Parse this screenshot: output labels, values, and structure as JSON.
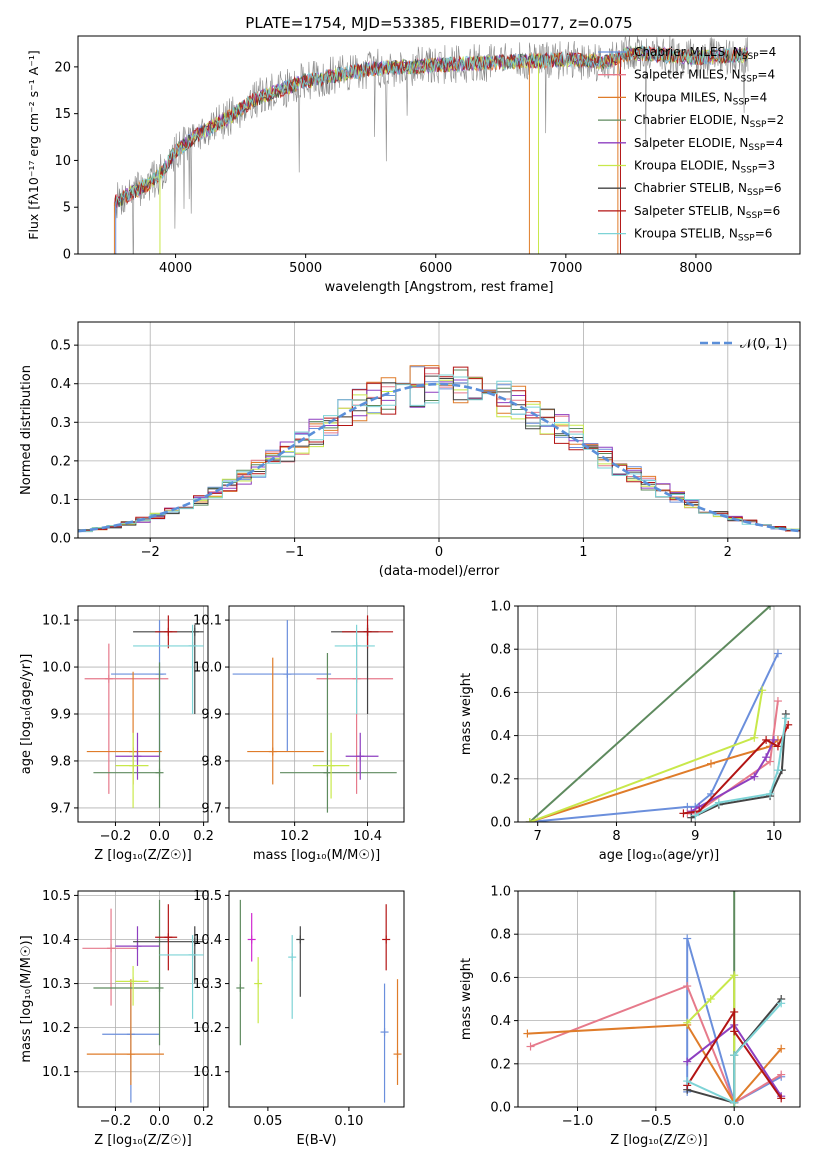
{
  "colors": {
    "chabrier_miles": "#6b8fdc",
    "salpeter_miles": "#e67a8b",
    "kroupa_miles": "#df7c2a",
    "chabrier_elodie": "#5e8a5e",
    "salpeter_elodie": "#8e3fc0",
    "kroupa_elodie": "#c8e84a",
    "chabrier_stelib": "#444444",
    "salpeter_stelib": "#b31414",
    "kroupa_stelib": "#7dd3d6",
    "magenta": "#d02ad0",
    "spectrum": "#888888",
    "gauss": "#5b8fd9"
  },
  "chart_data": [
    {
      "id": "spectrum",
      "type": "line",
      "title": "PLATE=1754, MJD=53385, FIBERID=0177, z=0.075",
      "xlabel": "wavelength [Angstrom, rest frame]",
      "ylabel": "Flux [fλ10⁻¹⁷ erg cm⁻² s⁻¹ A⁻¹]",
      "xlim": [
        3250,
        8800
      ],
      "ylim": [
        0,
        23.3
      ],
      "xticks": [
        4000,
        5000,
        6000,
        7000,
        8000
      ],
      "yticks": [
        0,
        5,
        10,
        15,
        20
      ],
      "grid": false,
      "legend_position": "top-right",
      "legend": [
        {
          "key": "chabrier_miles",
          "label": "Chabrier MILES, N",
          "sub": "SSP",
          "eq": "=4"
        },
        {
          "key": "salpeter_miles",
          "label": "Salpeter MILES, N",
          "sub": "SSP",
          "eq": "=4"
        },
        {
          "key": "kroupa_miles",
          "label": "Kroupa MILES, N",
          "sub": "SSP",
          "eq": "=4"
        },
        {
          "key": "chabrier_elodie",
          "label": "Chabrier ELODIE, N",
          "sub": "SSP",
          "eq": "=2"
        },
        {
          "key": "salpeter_elodie",
          "label": "Salpeter ELODIE, N",
          "sub": "SSP",
          "eq": "=4"
        },
        {
          "key": "kroupa_elodie",
          "label": "Kroupa ELODIE, N",
          "sub": "SSP",
          "eq": "=3"
        },
        {
          "key": "chabrier_stelib",
          "label": "Chabrier STELIB, N",
          "sub": "SSP",
          "eq": "=6"
        },
        {
          "key": "salpeter_stelib",
          "label": "Salpeter STELIB, N",
          "sub": "SSP",
          "eq": "=6"
        },
        {
          "key": "kroupa_stelib",
          "label": "Kroupa STELIB, N",
          "sub": "SSP",
          "eq": "=6"
        }
      ],
      "continuum": [
        [
          3530,
          5.5
        ],
        [
          3700,
          6.8
        ],
        [
          3800,
          7.5
        ],
        [
          3900,
          8.8
        ],
        [
          4000,
          11.0
        ],
        [
          4200,
          13.0
        ],
        [
          4400,
          14.5
        ],
        [
          4600,
          16.5
        ],
        [
          4800,
          17.5
        ],
        [
          5000,
          18.5
        ],
        [
          5200,
          19.0
        ],
        [
          5500,
          19.8
        ],
        [
          5800,
          20.0
        ],
        [
          6000,
          20.2
        ],
        [
          6500,
          20.5
        ],
        [
          7000,
          20.8
        ],
        [
          7300,
          20.5
        ],
        [
          7500,
          21.5
        ],
        [
          8000,
          21.0
        ],
        [
          8400,
          21.3
        ]
      ]
    },
    {
      "id": "residuals",
      "type": "line",
      "xlabel": "(data-model)/error",
      "ylabel": "Normed distribution",
      "xlim": [
        -2.5,
        2.5
      ],
      "ylim": [
        0,
        0.56
      ],
      "xticks": [
        -2,
        -1,
        0,
        1,
        2
      ],
      "yticks": [
        0.0,
        0.1,
        0.2,
        0.3,
        0.4,
        0.5
      ],
      "grid": true,
      "legend_position": "top-right",
      "legend_label": "𝒩(0, 1)",
      "gauss": {
        "mu": 0,
        "sigma": 1
      }
    },
    {
      "id": "age_vs_Z",
      "type": "scatter",
      "xlabel": "Z [log₁₀(Z/Z☉)]",
      "ylabel": "age  [log₁₀(age/yr)]",
      "xlim": [
        -0.37,
        0.22
      ],
      "ylim": [
        9.67,
        10.13
      ],
      "xticks": [
        -0.2,
        0.0,
        0.2
      ],
      "yticks": [
        9.7,
        9.8,
        9.9,
        10.0,
        10.1
      ],
      "grid": true,
      "points": [
        {
          "c": "chabrier_miles",
          "x": 0.0,
          "y": 9.985,
          "x0": -0.22,
          "x1": 0.03,
          "y0": 9.82,
          "y1": 10.1
        },
        {
          "c": "salpeter_miles",
          "x": -0.23,
          "y": 9.975,
          "x0": -0.34,
          "x1": 0.04,
          "y0": 9.73,
          "y1": 10.05
        },
        {
          "c": "kroupa_miles",
          "x": -0.12,
          "y": 9.82,
          "x0": -0.33,
          "x1": 0.01,
          "y0": 9.75,
          "y1": 9.99
        },
        {
          "c": "chabrier_elodie",
          "x": 0.0,
          "y": 9.775,
          "x0": -0.3,
          "x1": 0.0,
          "y0": 9.7,
          "y1": 10.01
        },
        {
          "c": "salpeter_elodie",
          "x": -0.1,
          "y": 9.81,
          "x0": -0.2,
          "x1": 0.0,
          "y0": 9.76,
          "y1": 9.86
        },
        {
          "c": "kroupa_elodie",
          "x": -0.12,
          "y": 9.79,
          "x0": -0.2,
          "x1": -0.05,
          "y0": 9.7,
          "y1": 9.86
        },
        {
          "c": "chabrier_stelib",
          "x": 0.16,
          "y": 10.075,
          "x0": -0.12,
          "x1": 0.2,
          "y0": 9.9,
          "y1": 10.09
        },
        {
          "c": "salpeter_stelib",
          "x": 0.04,
          "y": 10.075,
          "x0": -0.02,
          "x1": 0.08,
          "y0": 10.04,
          "y1": 10.11
        },
        {
          "c": "kroupa_stelib",
          "x": 0.15,
          "y": 10.045,
          "x0": -0.12,
          "x1": 0.2,
          "y0": 9.9,
          "y1": 10.09
        }
      ]
    },
    {
      "id": "age_vs_mass",
      "type": "scatter",
      "xlabel": "mass [log₁₀(M/M☉)]",
      "ylabel": "",
      "xlim": [
        10.02,
        10.5
      ],
      "ylim": [
        9.67,
        10.13
      ],
      "xticks": [
        10.2,
        10.4
      ],
      "yticks": [
        9.7,
        9.8,
        9.9,
        10.0,
        10.1
      ],
      "grid": true,
      "points": [
        {
          "c": "chabrier_miles",
          "x": 10.18,
          "y": 9.985,
          "x0": 10.03,
          "x1": 10.3,
          "y0": 9.82,
          "y1": 10.1
        },
        {
          "c": "salpeter_miles",
          "x": 10.37,
          "y": 9.975,
          "x0": 10.26,
          "x1": 10.47,
          "y0": 9.73,
          "y1": 10.05
        },
        {
          "c": "kroupa_miles",
          "x": 10.14,
          "y": 9.82,
          "x0": 10.07,
          "x1": 10.28,
          "y0": 9.75,
          "y1": 10.02
        },
        {
          "c": "chabrier_elodie",
          "x": 10.29,
          "y": 9.775,
          "x0": 10.16,
          "x1": 10.48,
          "y0": 9.69,
          "y1": 10.03
        },
        {
          "c": "salpeter_elodie",
          "x": 10.38,
          "y": 9.81,
          "x0": 10.34,
          "x1": 10.43,
          "y0": 9.76,
          "y1": 9.86
        },
        {
          "c": "kroupa_elodie",
          "x": 10.3,
          "y": 9.79,
          "x0": 10.25,
          "x1": 10.35,
          "y0": 9.72,
          "y1": 9.86
        },
        {
          "c": "chabrier_stelib",
          "x": 10.4,
          "y": 10.075,
          "x0": 10.3,
          "x1": 10.43,
          "y0": 9.9,
          "y1": 10.09
        },
        {
          "c": "salpeter_stelib",
          "x": 10.4,
          "y": 10.075,
          "x0": 10.33,
          "x1": 10.47,
          "y0": 10.04,
          "y1": 10.11
        },
        {
          "c": "kroupa_stelib",
          "x": 10.37,
          "y": 10.045,
          "x0": 10.31,
          "x1": 10.42,
          "y0": 9.9,
          "y1": 10.09
        }
      ]
    },
    {
      "id": "weight_vs_age",
      "type": "line",
      "xlabel": "age  [log₁₀(age/yr)]",
      "ylabel": "mass weight",
      "xlim": [
        6.75,
        10.33
      ],
      "ylim": [
        0,
        1.0
      ],
      "xticks": [
        7,
        8,
        9,
        10
      ],
      "yticks": [
        0.0,
        0.2,
        0.4,
        0.6,
        0.8,
        1.0
      ],
      "grid": true,
      "series": [
        {
          "c": "chabrier_miles",
          "x": [
            6.9,
            8.9,
            9.0,
            9.2,
            10.05
          ],
          "y": [
            0.0,
            0.07,
            0.07,
            0.13,
            0.78
          ]
        },
        {
          "c": "salpeter_miles",
          "x": [
            8.9,
            9.0,
            9.95,
            10.05
          ],
          "y": [
            0.04,
            0.04,
            0.28,
            0.56
          ]
        },
        {
          "c": "kroupa_miles",
          "x": [
            6.9,
            9.2,
            9.95,
            10.05
          ],
          "y": [
            0.0,
            0.27,
            0.35,
            0.38
          ]
        },
        {
          "c": "chabrier_elodie",
          "x": [
            6.9,
            9.95
          ],
          "y": [
            0.0,
            1.0
          ]
        },
        {
          "c": "salpeter_elodie",
          "x": [
            8.95,
            9.05,
            9.75,
            9.9,
            10.0
          ],
          "y": [
            0.05,
            0.07,
            0.21,
            0.3,
            0.38
          ]
        },
        {
          "c": "kroupa_elodie",
          "x": [
            6.9,
            9.75,
            9.85
          ],
          "y": [
            0.0,
            0.39,
            0.61
          ]
        },
        {
          "c": "chabrier_stelib",
          "x": [
            8.95,
            9.3,
            9.95,
            10.1,
            10.15
          ],
          "y": [
            0.02,
            0.08,
            0.12,
            0.24,
            0.5
          ]
        },
        {
          "c": "salpeter_stelib",
          "x": [
            8.85,
            9.05,
            9.9,
            10.05,
            10.18
          ],
          "y": [
            0.04,
            0.05,
            0.38,
            0.35,
            0.45
          ]
        },
        {
          "c": "kroupa_stelib",
          "x": [
            9.0,
            9.3,
            9.95,
            10.05,
            10.15
          ],
          "y": [
            0.03,
            0.09,
            0.13,
            0.24,
            0.48
          ]
        }
      ]
    },
    {
      "id": "mass_vs_Z",
      "type": "scatter",
      "xlabel": "Z [log₁₀(Z/Z☉)]",
      "ylabel": "mass [log₁₀(M/M☉)]",
      "xlim": [
        -0.37,
        0.22
      ],
      "ylim": [
        10.02,
        10.51
      ],
      "xticks": [
        -0.2,
        0.0,
        0.2
      ],
      "yticks": [
        10.1,
        10.2,
        10.3,
        10.4,
        10.5
      ],
      "grid": true,
      "points": [
        {
          "c": "chabrier_miles",
          "x": -0.13,
          "y": 10.185,
          "x0": -0.26,
          "x1": 0.0,
          "y0": 10.03,
          "y1": 10.3
        },
        {
          "c": "salpeter_miles",
          "x": -0.22,
          "y": 10.38,
          "x0": -0.35,
          "x1": -0.1,
          "y0": 10.25,
          "y1": 10.47
        },
        {
          "c": "kroupa_miles",
          "x": -0.13,
          "y": 10.14,
          "x0": -0.33,
          "x1": 0.02,
          "y0": 10.07,
          "y1": 10.31
        },
        {
          "c": "chabrier_elodie",
          "x": 0.0,
          "y": 10.29,
          "x0": -0.3,
          "x1": 0.0,
          "y0": 10.16,
          "y1": 10.49
        },
        {
          "c": "salpeter_elodie",
          "x": -0.1,
          "y": 10.385,
          "x0": -0.2,
          "x1": 0.0,
          "y0": 10.34,
          "y1": 10.43
        },
        {
          "c": "kroupa_elodie",
          "x": -0.12,
          "y": 10.305,
          "x0": -0.2,
          "x1": -0.05,
          "y0": 10.25,
          "y1": 10.34
        },
        {
          "c": "chabrier_stelib",
          "x": 0.16,
          "y": 10.395,
          "x0": -0.12,
          "x1": 0.2,
          "y0": 10.3,
          "y1": 10.43
        },
        {
          "c": "salpeter_stelib",
          "x": 0.04,
          "y": 10.405,
          "x0": -0.02,
          "x1": 0.08,
          "y0": 10.33,
          "y1": 10.48
        },
        {
          "c": "kroupa_stelib",
          "x": 0.15,
          "y": 10.365,
          "x0": 0.0,
          "x1": 0.2,
          "y0": 10.22,
          "y1": 10.41
        }
      ]
    },
    {
      "id": "mass_vs_ebv",
      "type": "scatter",
      "xlabel": "E(B-V)",
      "ylabel": "",
      "xlim": [
        0.026,
        0.134
      ],
      "ylim": [
        10.02,
        10.51
      ],
      "xticks": [
        0.05,
        0.1
      ],
      "yticks": [
        10.1,
        10.2,
        10.3,
        10.4,
        10.5
      ],
      "grid": false,
      "points": [
        {
          "c": "chabrier_elodie",
          "x": 0.033,
          "y": 10.29,
          "y0": 10.16,
          "y1": 10.49
        },
        {
          "c": "magenta",
          "x": 0.04,
          "y": 10.4,
          "y0": 10.35,
          "y1": 10.46
        },
        {
          "c": "kroupa_elodie",
          "x": 0.044,
          "y": 10.3,
          "y0": 10.21,
          "y1": 10.36
        },
        {
          "c": "kroupa_stelib",
          "x": 0.065,
          "y": 10.36,
          "y0": 10.22,
          "y1": 10.41
        },
        {
          "c": "chabrier_stelib",
          "x": 0.07,
          "y": 10.4,
          "y0": 10.27,
          "y1": 10.43
        },
        {
          "c": "chabrier_miles",
          "x": 0.122,
          "y": 10.19,
          "y0": 10.03,
          "y1": 10.3
        },
        {
          "c": "salpeter_stelib",
          "x": 0.123,
          "y": 10.4,
          "y0": 10.33,
          "y1": 10.48
        },
        {
          "c": "kroupa_miles",
          "x": 0.13,
          "y": 10.14,
          "y0": 10.07,
          "y1": 10.31
        }
      ]
    },
    {
      "id": "weight_vs_Z",
      "type": "line",
      "xlabel": "Z [log₁₀(Z/Z☉)]",
      "ylabel": "mass weight",
      "xlim": [
        -1.38,
        0.42
      ],
      "ylim": [
        0,
        1.0
      ],
      "xticks": [
        -1.0,
        -0.5,
        0.0
      ],
      "yticks": [
        0.0,
        0.2,
        0.4,
        0.6,
        0.8,
        1.0
      ],
      "grid": true,
      "series": [
        {
          "c": "chabrier_miles",
          "x": [
            -0.3,
            -0.3,
            0.0,
            0.3
          ],
          "y": [
            0.07,
            0.78,
            0.02,
            0.14
          ]
        },
        {
          "c": "salpeter_miles",
          "x": [
            -1.3,
            -0.3,
            0.0,
            0.3
          ],
          "y": [
            0.28,
            0.56,
            0.02,
            0.15
          ]
        },
        {
          "c": "kroupa_miles",
          "x": [
            -1.32,
            -0.3,
            0.0,
            0.3
          ],
          "y": [
            0.34,
            0.38,
            0.02,
            0.27
          ]
        },
        {
          "c": "chabrier_elodie",
          "x": [
            0.0,
            0.0
          ],
          "y": [
            0.0,
            1.0
          ]
        },
        {
          "c": "salpeter_elodie",
          "x": [
            -0.3,
            0.0,
            0.3
          ],
          "y": [
            0.21,
            0.38,
            0.05
          ]
        },
        {
          "c": "kroupa_elodie",
          "x": [
            -0.3,
            -0.15,
            0.0,
            0.0
          ],
          "y": [
            0.39,
            0.5,
            0.61,
            0.0
          ]
        },
        {
          "c": "chabrier_stelib",
          "x": [
            -0.3,
            0.0,
            0.0,
            0.3
          ],
          "y": [
            0.08,
            0.02,
            0.24,
            0.5
          ]
        },
        {
          "c": "salpeter_stelib",
          "x": [
            -0.3,
            0.0,
            0.0,
            0.3
          ],
          "y": [
            0.1,
            0.44,
            0.35,
            0.04
          ]
        },
        {
          "c": "kroupa_stelib",
          "x": [
            -0.3,
            0.0,
            0.0,
            0.3
          ],
          "y": [
            0.12,
            0.02,
            0.24,
            0.48
          ]
        }
      ]
    }
  ]
}
